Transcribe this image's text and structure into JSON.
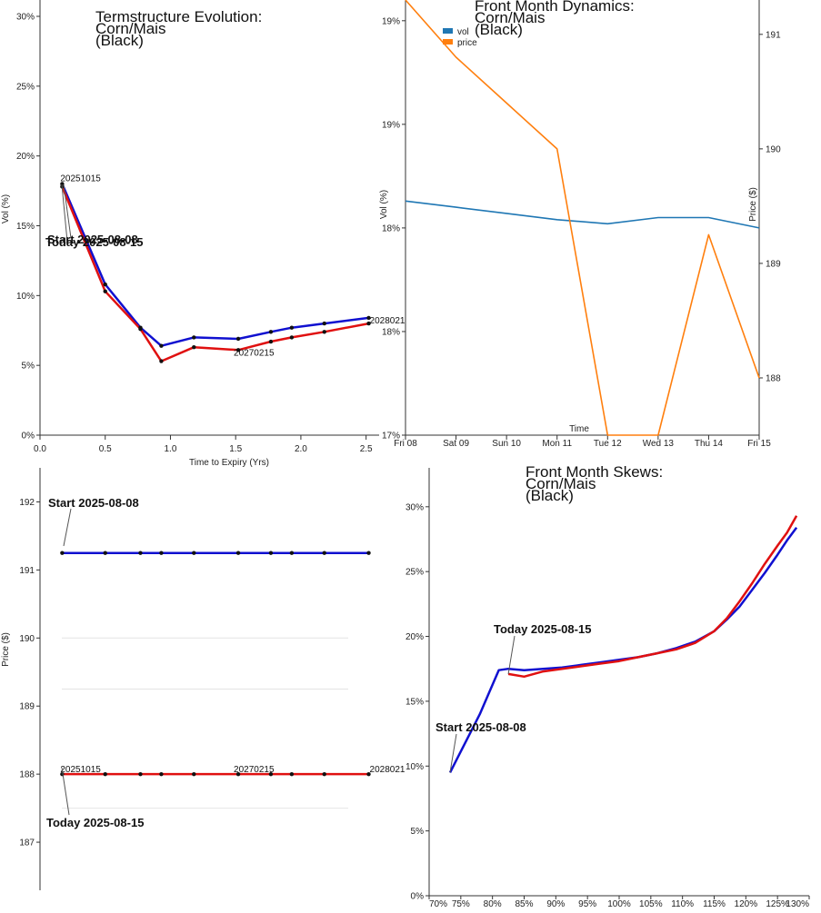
{
  "chart_data": [
    {
      "id": "termstructure",
      "type": "line",
      "title": [
        "Termstructure Evolution:",
        "Corn/Mais",
        "(Black)"
      ],
      "xlabel": "Time to Expiry (Yrs)",
      "ylabel": "Vol (%)",
      "xlim": [
        0,
        2.6
      ],
      "ylim": [
        0,
        30
      ],
      "xticks": [
        0.0,
        0.5,
        1.0,
        1.5,
        2.0,
        2.5
      ],
      "xtick_labels": [
        "0.0",
        "0.5",
        "1.0",
        "1.5",
        "2.0",
        "2.5"
      ],
      "yticks": [
        0,
        5,
        10,
        15,
        20,
        25,
        30
      ],
      "ytick_labels": [
        "0%",
        "5%",
        "10%",
        "15%",
        "20%",
        "25%",
        "30%"
      ],
      "series": [
        {
          "name": "Start 2025-08-08",
          "color": "#1010d0",
          "x": [
            0.17,
            0.5,
            0.77,
            0.93,
            1.18,
            1.52,
            1.77,
            1.93,
            2.18,
            2.52
          ],
          "y": [
            18.0,
            10.8,
            7.7,
            6.4,
            7.0,
            6.9,
            7.4,
            7.7,
            8.0,
            8.4
          ]
        },
        {
          "name": "Today 2025-08-15",
          "color": "#e01010",
          "x": [
            0.17,
            0.5,
            0.77,
            0.93,
            1.18,
            1.52,
            1.77,
            1.93,
            2.18,
            2.52
          ],
          "y": [
            17.8,
            10.3,
            7.6,
            5.3,
            6.3,
            6.1,
            6.7,
            7.0,
            7.4,
            8.0
          ]
        }
      ],
      "annotations": [
        {
          "text": "20251015",
          "x": 0.17,
          "y": 18.0
        },
        {
          "text": "20270215",
          "x": 1.52,
          "y": 6.1
        },
        {
          "text": "2028021",
          "x": 2.52,
          "y": 8.4
        },
        {
          "text": "Start 2025-08-08",
          "x": 0.17,
          "y": 14.0
        },
        {
          "text": "Today 2025-08-15",
          "x": 0.17,
          "y": 13.6
        }
      ]
    },
    {
      "id": "frontmonth-dynamics",
      "type": "line",
      "title": [
        "Front Month Dynamics:",
        "Corn/Mais",
        "(Black)"
      ],
      "xlabel": "Time",
      "ylabel": "Vol (%)",
      "ylabel_right": "Price ($)",
      "categories": [
        "Fri 08",
        "Sat 09",
        "Sun 10",
        "Mon 11",
        "Tue 12",
        "Wed 13",
        "Thu 14",
        "Fri 15"
      ],
      "ylim": [
        17.0,
        19.1
      ],
      "yticks": [
        17.0,
        17.5,
        18.0,
        18.5,
        19.0
      ],
      "ytick_labels": [
        "17%",
        "18%",
        "18%",
        "19%",
        "19%"
      ],
      "y2lim": [
        187.5,
        191.3
      ],
      "y2ticks": [
        188,
        189,
        190,
        191
      ],
      "y2tick_labels": [
        "188",
        "189",
        "190",
        "191"
      ],
      "legend": [
        "vol",
        "price"
      ],
      "series": [
        {
          "name": "vol",
          "axis": "left",
          "color": "#1f77b4",
          "values": [
            18.13,
            18.1,
            18.07,
            18.04,
            18.02,
            18.05,
            18.05,
            18.0
          ]
        },
        {
          "name": "price",
          "axis": "right",
          "color": "#ff7f0e",
          "values": [
            191.3,
            190.8,
            190.4,
            190.0,
            187.5,
            187.5,
            189.25,
            188.0
          ]
        }
      ]
    },
    {
      "id": "price-termstructure",
      "type": "line",
      "ylabel": "Price ($)",
      "xlim": [
        0,
        2.6
      ],
      "ylim": [
        186.2,
        192.5
      ],
      "yticks": [
        187,
        188,
        189,
        190,
        191,
        192
      ],
      "ytick_labels": [
        "187",
        "188",
        "189",
        "190",
        "191",
        "192"
      ],
      "series": [
        {
          "name": "Start 2025-08-08",
          "color": "#1010d0",
          "x": [
            0.17,
            0.5,
            0.77,
            0.93,
            1.18,
            1.52,
            1.77,
            1.93,
            2.18,
            2.52
          ],
          "y": [
            191.25,
            191.25,
            191.25,
            191.25,
            191.25,
            191.25,
            191.25,
            191.25,
            191.25,
            191.25
          ]
        },
        {
          "name": "Today 2025-08-15",
          "color": "#e01010",
          "x": [
            0.17,
            0.5,
            0.77,
            0.93,
            1.18,
            1.52,
            1.77,
            1.93,
            2.18,
            2.52
          ],
          "y": [
            188.0,
            188.0,
            188.0,
            188.0,
            188.0,
            188.0,
            188.0,
            188.0,
            188.0,
            188.0
          ]
        }
      ],
      "annotations": [
        {
          "text": "20251015",
          "x": 0.17,
          "y": 188.0
        },
        {
          "text": "20270215",
          "x": 1.52,
          "y": 188.0
        },
        {
          "text": "2028021",
          "x": 2.52,
          "y": 188.0
        },
        {
          "text": "Start 2025-08-08",
          "x": 0.17,
          "y": 191.3
        },
        {
          "text": "Today 2025-08-15",
          "x": 0.17,
          "y": 187.9
        }
      ]
    },
    {
      "id": "frontmonth-skews",
      "type": "line",
      "title": [
        "Front Month Skews:",
        "Corn/Mais",
        "(Black)"
      ],
      "xlim": [
        70,
        130
      ],
      "ylim": [
        0,
        33
      ],
      "xticks": [
        70,
        75,
        80,
        85,
        90,
        95,
        100,
        105,
        110,
        115,
        120,
        125,
        130
      ],
      "xtick_labels": [
        "70%",
        "75%",
        "80%",
        "85%",
        "90%",
        "95%",
        "100%",
        "105%",
        "110%",
        "115%",
        "120%",
        "125%",
        "130%"
      ],
      "yticks": [
        0,
        5,
        10,
        15,
        20,
        25,
        30
      ],
      "ytick_labels": [
        "0%",
        "5%",
        "10%",
        "15%",
        "20%",
        "25%",
        "30%"
      ],
      "series": [
        {
          "name": "Start 2025-08-08",
          "color": "#1010d0",
          "x": [
            73.3,
            78,
            81,
            82.5,
            85,
            88,
            91,
            94,
            97,
            100,
            103,
            106,
            109,
            112,
            115,
            117,
            119,
            121,
            123,
            125,
            126.5,
            128
          ],
          "y": [
            9.5,
            14.0,
            17.4,
            17.5,
            17.4,
            17.5,
            17.6,
            17.8,
            18.0,
            18.2,
            18.4,
            18.7,
            19.1,
            19.6,
            20.4,
            21.3,
            22.3,
            23.6,
            24.9,
            26.3,
            27.4,
            28.4
          ]
        },
        {
          "name": "Today 2025-08-15",
          "color": "#e01010",
          "x": [
            82.5,
            85,
            88,
            91,
            94,
            97,
            100,
            103,
            106,
            109,
            112,
            115,
            117,
            119,
            121,
            123,
            125,
            126.5,
            128
          ],
          "y": [
            17.1,
            16.9,
            17.3,
            17.5,
            17.7,
            17.9,
            18.1,
            18.4,
            18.7,
            19.0,
            19.5,
            20.4,
            21.4,
            22.7,
            24.1,
            25.6,
            27.0,
            28.0,
            29.3
          ]
        }
      ],
      "annotations": [
        {
          "text": "Today 2025-08-15",
          "x": 82.5,
          "y": 17.1
        },
        {
          "text": "Start 2025-08-08",
          "x": 73.3,
          "y": 9.5
        }
      ]
    }
  ]
}
